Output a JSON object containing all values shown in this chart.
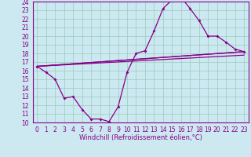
{
  "xlabel": "Windchill (Refroidissement éolien,°C)",
  "background_color": "#cce8f0",
  "grid_color": "#99ccbb",
  "line_color": "#880088",
  "spine_color": "#880088",
  "xlim": [
    -0.5,
    23.5
  ],
  "ylim": [
    10,
    24
  ],
  "xticks": [
    0,
    1,
    2,
    3,
    4,
    5,
    6,
    7,
    8,
    9,
    10,
    11,
    12,
    13,
    14,
    15,
    16,
    17,
    18,
    19,
    20,
    21,
    22,
    23
  ],
  "yticks": [
    10,
    11,
    12,
    13,
    14,
    15,
    16,
    17,
    18,
    19,
    20,
    21,
    22,
    23,
    24
  ],
  "line1_x": [
    0,
    1,
    2,
    3,
    4,
    5,
    6,
    7,
    8,
    9,
    10,
    11,
    12,
    13,
    14,
    15,
    16,
    17,
    18,
    19,
    20,
    21,
    22,
    23
  ],
  "line1_y": [
    16.5,
    15.8,
    15.0,
    12.8,
    13.0,
    11.5,
    10.4,
    10.4,
    10.1,
    11.8,
    15.8,
    18.0,
    18.3,
    20.6,
    23.2,
    24.2,
    24.5,
    23.2,
    21.8,
    20.0,
    20.0,
    19.3,
    18.5,
    18.2
  ],
  "line2_x": [
    0,
    23
  ],
  "line2_y": [
    16.5,
    18.2
  ],
  "line3_x": [
    0,
    23
  ],
  "line3_y": [
    16.5,
    18.2
  ],
  "line4_x": [
    0,
    23
  ],
  "line4_y": [
    16.5,
    17.8
  ],
  "tick_fontsize": 5.5,
  "xlabel_fontsize": 6.0
}
